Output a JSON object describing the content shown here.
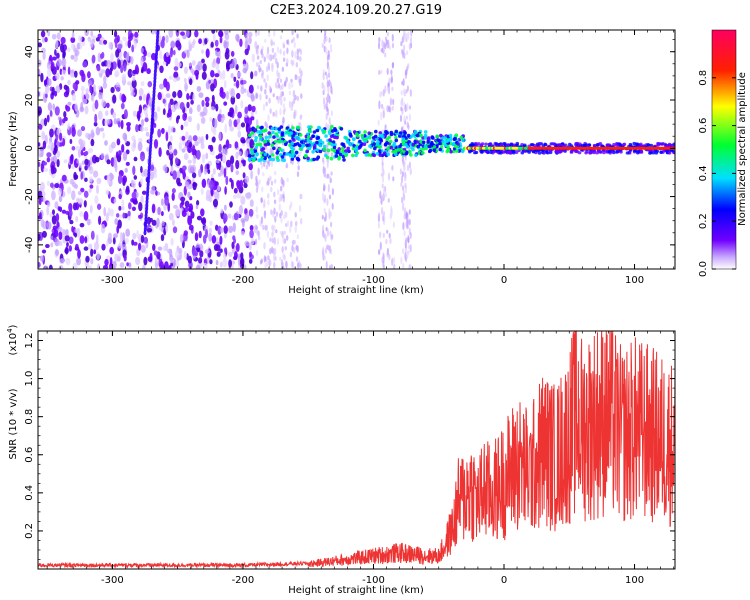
{
  "title": "C2E3.2024.109.20.27.G19",
  "chart_data": [
    {
      "type": "heatmap",
      "title": "C2E3.2024.109.20.27.G19",
      "xlabel": "Height of straight line (km)",
      "ylabel": "Frequency (Hz)",
      "xlim": [
        -357,
        131
      ],
      "ylim": [
        -50,
        49
      ],
      "x_ticks": [
        -300,
        -200,
        -100,
        0,
        100
      ],
      "x_tick_labels": [
        "-300",
        "-200",
        "-100",
        "0",
        "100"
      ],
      "y_ticks": [
        -40,
        -20,
        0,
        20,
        40
      ],
      "y_tick_labels": [
        "-40",
        "-20",
        "0",
        "20",
        "40"
      ],
      "colorbar": {
        "label": "Normalized spectral amplitude",
        "range": [
          0,
          1
        ],
        "ticks": [
          0.0,
          0.2,
          0.4,
          0.6,
          0.8
        ],
        "tick_labels": [
          "0.0",
          "0.2",
          "0.4",
          "0.6",
          "0.8"
        ],
        "colormap": [
          "#ffffff",
          "#6a00ff",
          "#0000ff",
          "#00e5ff",
          "#00ff00",
          "#ffff00",
          "#ff0000",
          "#ff0066"
        ]
      },
      "regions": [
        {
          "x_range": [
            -357,
            -190
          ],
          "freq_range": [
            -50,
            49
          ],
          "amplitude": 0.1
        },
        {
          "x_range": [
            -190,
            -30
          ],
          "freq_range": [
            -5,
            8
          ],
          "amplitude": 0.4
        },
        {
          "x_range": [
            -30,
            131
          ],
          "freq_range": [
            -2,
            2
          ],
          "amplitude": 0.85
        }
      ],
      "grid": false
    },
    {
      "type": "line",
      "xlabel": "Height of straight line (km)",
      "ylabel": "SNR (10 * v/v)",
      "y_multiplier_label": "(x10",
      "y_multiplier_exp": "4",
      "y_multiplier_close": ")",
      "xlim": [
        -357,
        131
      ],
      "ylim": [
        0,
        1.25
      ],
      "x_ticks": [
        -300,
        -200,
        -100,
        0,
        100
      ],
      "x_tick_labels": [
        "-300",
        "-200",
        "-100",
        "0",
        "100"
      ],
      "y_ticks": [
        0.2,
        0.4,
        0.6,
        0.8,
        1.0,
        1.2
      ],
      "y_tick_labels": [
        "0.2",
        "0.4",
        "0.6",
        "0.8",
        "1.0",
        "1.2"
      ],
      "color": "#ee3333",
      "series": [
        {
          "x": [
            -357,
            -300,
            -250,
            -200,
            -150,
            -120,
            -100,
            -80,
            -60,
            -50,
            -45,
            -40,
            -35,
            -30,
            -25,
            -20,
            -15,
            -10,
            0,
            10,
            20,
            30,
            40,
            50,
            55,
            60,
            70,
            80,
            90,
            100,
            110,
            120,
            131
          ],
          "values": [
            0.02,
            0.02,
            0.02,
            0.02,
            0.03,
            0.06,
            0.08,
            0.1,
            0.08,
            0.08,
            0.15,
            0.25,
            0.45,
            0.5,
            0.55,
            0.45,
            0.55,
            0.5,
            0.6,
            0.72,
            0.65,
            0.82,
            0.75,
            0.9,
            1.05,
            0.95,
            1.0,
            1.05,
            0.9,
            0.95,
            0.92,
            0.88,
            0.85
          ]
        }
      ],
      "grid": false
    }
  ]
}
